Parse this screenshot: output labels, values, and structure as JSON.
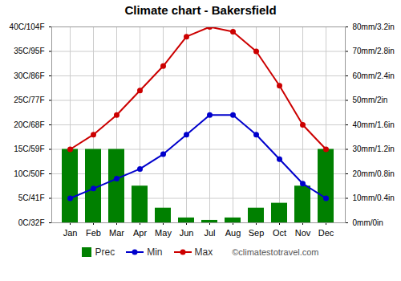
{
  "chart_data": {
    "type": "bar",
    "title": "Climate chart - Bakersfield",
    "categories": [
      "Jan",
      "Feb",
      "Mar",
      "Apr",
      "May",
      "Jun",
      "Jul",
      "Aug",
      "Sep",
      "Oct",
      "Nov",
      "Dec"
    ],
    "series": [
      {
        "name": "Prec",
        "type": "bar",
        "axis": "y2",
        "color": "#008000",
        "values": [
          30,
          30,
          30,
          15,
          6,
          2,
          1,
          2,
          6,
          8,
          15,
          30
        ]
      },
      {
        "name": "Min",
        "type": "line",
        "color": "#0000cc",
        "marker": "circle",
        "values": [
          5,
          7,
          9,
          11,
          14,
          18,
          22,
          22,
          18,
          13,
          8,
          5
        ]
      },
      {
        "name": "Max",
        "type": "line",
        "color": "#cc0000",
        "marker": "circle",
        "values": [
          15,
          18,
          22,
          27,
          32,
          38,
          40,
          39,
          35,
          28,
          20,
          15
        ]
      }
    ],
    "ylim": [
      0,
      40
    ],
    "yticks": [
      {
        "value": 0,
        "label": "0C/32F"
      },
      {
        "value": 5,
        "label": "5C/41F"
      },
      {
        "value": 10,
        "label": "10C/50F"
      },
      {
        "value": 15,
        "label": "15C/59F"
      },
      {
        "value": 20,
        "label": "20C/68F"
      },
      {
        "value": 25,
        "label": "25C/77F"
      },
      {
        "value": 30,
        "label": "30C/86F"
      },
      {
        "value": 35,
        "label": "35C/95F"
      },
      {
        "value": 40,
        "label": "40C/104F"
      }
    ],
    "y2lim": [
      0,
      80
    ],
    "y2ticks": [
      {
        "value": 0,
        "label": "0mm/0in"
      },
      {
        "value": 10,
        "label": "10mm/0.4in"
      },
      {
        "value": 20,
        "label": "20mm/0.8in"
      },
      {
        "value": 30,
        "label": "30mm/1.2in"
      },
      {
        "value": 40,
        "label": "40mm/1.6in"
      },
      {
        "value": 50,
        "label": "50mm/2in"
      },
      {
        "value": 60,
        "label": "60mm/2.4in"
      },
      {
        "value": 70,
        "label": "70mm/2.8in"
      },
      {
        "value": 80,
        "label": "80mm/3.2in"
      }
    ],
    "grid": true,
    "legend": "bottom",
    "annotations": [
      "©climatestotravel.com"
    ]
  }
}
